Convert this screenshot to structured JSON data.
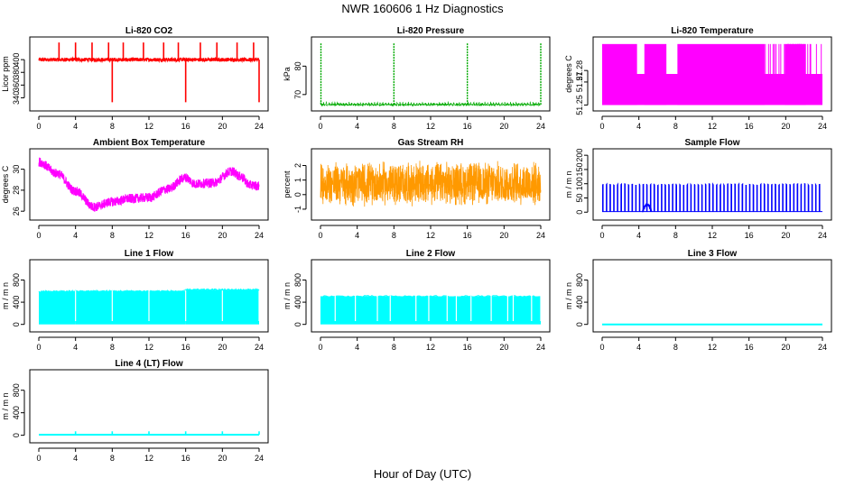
{
  "page": {
    "title": "NWR 160606 1 Hz Diagnostics",
    "xlabel": "Hour of Day (UTC)"
  },
  "chart_data": [
    {
      "type": "line",
      "title": "Li-820 CO2",
      "ylabel": "Licor ppm",
      "color": "#ff0000",
      "style": "co2",
      "xlim": [
        0,
        24
      ],
      "xticks": [
        0,
        4,
        8,
        12,
        16,
        20,
        24
      ],
      "ylim": [
        325,
        430
      ],
      "yticks": [
        340,
        360,
        380,
        400
      ],
      "baseline": 400,
      "noise": 3,
      "spikes_up": [
        2.2,
        4.0,
        5.8,
        7.6,
        9.2,
        11.4,
        13.6,
        15.2,
        17.6,
        19.4,
        21.6,
        23.4
      ],
      "spike_up_top": 427,
      "dips": [
        8.0,
        16.0,
        24.0
      ],
      "dip_bottom": 333
    },
    {
      "type": "line",
      "title": "Li-820 Pressure",
      "ylabel": "kPa",
      "color": "#00aa00",
      "style": "pressure",
      "xlim": [
        0,
        24
      ],
      "xticks": [
        0,
        4,
        8,
        12,
        16,
        20,
        24
      ],
      "ylim": [
        65.5,
        89
      ],
      "yticks": [
        70,
        80
      ],
      "baseline": 66.4,
      "spikes": [
        0.05,
        8.0,
        16.0,
        24.0
      ],
      "spike_top": 88
    },
    {
      "type": "line",
      "title": "Li-820 Temperature",
      "ylabel": "degrees C",
      "color": "#ff00ff",
      "style": "temperature",
      "xlim": [
        0,
        24
      ],
      "xticks": [
        0,
        4,
        8,
        12,
        16,
        20,
        24
      ],
      "ylim": [
        51.248,
        51.306
      ],
      "yticks": [
        51.25,
        51.27,
        51.28
      ],
      "low": 51.25,
      "mid": 51.277,
      "high": 51.303,
      "high_segments": [
        [
          0,
          3.8
        ],
        [
          4.6,
          7.0
        ],
        [
          8.2,
          17.7
        ],
        [
          19.9,
          22.2
        ]
      ]
    },
    {
      "type": "line",
      "title": "Ambient Box Temperature",
      "ylabel": "degrees C",
      "color": "#ff00ff",
      "style": "ambient",
      "xlim": [
        0,
        24
      ],
      "xticks": [
        0,
        4,
        8,
        12,
        16,
        20,
        24
      ],
      "ylim": [
        25.5,
        31.6
      ],
      "yticks": [
        26,
        28,
        30
      ],
      "x": [
        0,
        2,
        4,
        6,
        8,
        10,
        12,
        14,
        16,
        17,
        19,
        21,
        22,
        23,
        24
      ],
      "y": [
        30.7,
        29.6,
        27.9,
        26.4,
        26.9,
        27.2,
        27.3,
        28.1,
        29.2,
        28.6,
        28.7,
        29.8,
        29.3,
        28.5,
        28.4
      ]
    },
    {
      "type": "line",
      "title": "Gas Stream RH",
      "ylabel": "percent",
      "color": "#ff9900",
      "style": "rh",
      "xlim": [
        0,
        24
      ],
      "xticks": [
        0,
        4,
        8,
        12,
        16,
        20,
        24
      ],
      "ylim": [
        -1.5,
        2.9
      ],
      "yticks": [
        -1,
        0,
        1,
        2
      ],
      "center": 0.75,
      "amplitude": 1.6,
      "max": 2.7,
      "min": -1.2
    },
    {
      "type": "line",
      "title": "Sample Flow",
      "ylabel": "m / m n",
      "color": "#0000ff",
      "style": "pulse",
      "xlim": [
        0,
        24
      ],
      "xticks": [
        0,
        4,
        8,
        12,
        16,
        20,
        24
      ],
      "ylim": [
        -15,
        210
      ],
      "yticks": [
        0,
        50,
        100,
        150,
        200
      ],
      "baseline": 2,
      "pulse_top": 100,
      "pulse_period_h": 0.4,
      "bump": [
        4.4,
        5.4,
        25
      ]
    },
    {
      "type": "line",
      "title": "Line 1 Flow",
      "ylabel": "m / m n",
      "color": "#00ffff",
      "style": "block",
      "xlim": [
        0,
        24
      ],
      "xticks": [
        0,
        4,
        8,
        12,
        16,
        20,
        24
      ],
      "ylim": [
        -70,
        1100
      ],
      "yticks": [
        0,
        400,
        800
      ],
      "level": [
        [
          0,
          4,
          590
        ],
        [
          4,
          16,
          600
        ],
        [
          16,
          24,
          625
        ]
      ],
      "gaps": [
        4.0,
        8.0,
        12.0,
        16.0,
        20.0,
        24.0
      ]
    },
    {
      "type": "line",
      "title": "Line 2 Flow",
      "ylabel": "m / m n",
      "color": "#00ffff",
      "style": "block",
      "xlim": [
        0,
        24
      ],
      "xticks": [
        0,
        4,
        8,
        12,
        16,
        20,
        24
      ],
      "ylim": [
        -70,
        1100
      ],
      "yticks": [
        0,
        400,
        800
      ],
      "level": [
        [
          0,
          24,
          505
        ]
      ],
      "gaps": [
        1.6,
        3.8,
        6.2,
        7.6,
        10.4,
        11.8,
        13.8,
        14.8,
        16.4,
        18.6,
        20.4,
        21.0,
        23.0,
        24.0
      ]
    },
    {
      "type": "line",
      "title": "Line 3 Flow",
      "ylabel": "m / m n",
      "color": "#00ffff",
      "style": "flat",
      "xlim": [
        0,
        24
      ],
      "xticks": [
        0,
        4,
        8,
        12,
        16,
        20,
        24
      ],
      "ylim": [
        -70,
        1100
      ],
      "yticks": [
        0,
        400,
        800
      ],
      "value": 0
    },
    {
      "type": "line",
      "title": "Line 4 (LT) Flow",
      "ylabel": "m / m n",
      "color": "#00ffff",
      "style": "flat",
      "xlim": [
        0,
        24
      ],
      "xticks": [
        0,
        4,
        8,
        12,
        16,
        20,
        24
      ],
      "ylim": [
        -70,
        1100
      ],
      "yticks": [
        0,
        400,
        800
      ],
      "value": 10,
      "spikes": [
        4,
        8,
        12,
        16,
        20,
        24
      ],
      "spike_top": 70
    }
  ]
}
